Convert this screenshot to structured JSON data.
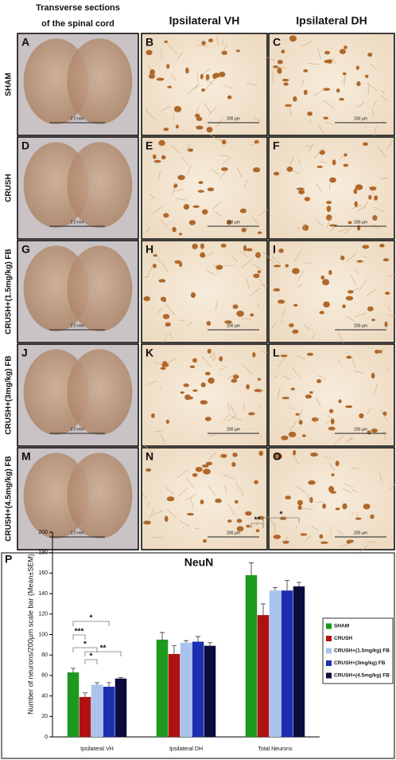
{
  "header": {
    "sections_title": [
      "Transverse sections",
      "of the spinal cord"
    ],
    "vh_title": "Ipsilateral VH",
    "dh_title": "Ipsilateral DH"
  },
  "rows": [
    {
      "label": "SHAM",
      "panels": [
        {
          "letter": "A",
          "scale": "2.0 mm"
        },
        {
          "letter": "B",
          "scale": "200 µm"
        },
        {
          "letter": "C",
          "scale": "200 µm"
        }
      ]
    },
    {
      "label": "CRUSH",
      "panels": [
        {
          "letter": "D",
          "scale": "2.0 mm"
        },
        {
          "letter": "E",
          "scale": "200 µm"
        },
        {
          "letter": "F",
          "scale": "200 µm"
        }
      ]
    },
    {
      "label": "CRUSH+(1.5mg/kg) FB",
      "panels": [
        {
          "letter": "G",
          "scale": "2.0 mm"
        },
        {
          "letter": "H",
          "scale": "200 µm"
        },
        {
          "letter": "I",
          "scale": "200 µm"
        }
      ]
    },
    {
      "label": "CRUSH+(3mg/kg) FB",
      "panels": [
        {
          "letter": "J",
          "scale": "2.0 mm"
        },
        {
          "letter": "K",
          "scale": "200 µm"
        },
        {
          "letter": "L",
          "scale": "200 µm"
        }
      ]
    },
    {
      "label": "CRUSH+(4.5mg/kg) FB",
      "panels": [
        {
          "letter": "M",
          "scale": "2.0 mm"
        },
        {
          "letter": "N",
          "scale": "200 µm"
        },
        {
          "letter": "O",
          "scale": "200 µm"
        }
      ]
    }
  ],
  "chart_data": {
    "type": "bar",
    "panel_letter": "P",
    "title": "NeuN",
    "y_label": "Number of neurons/200µm scale bar (Mean±SEM)",
    "categories": [
      "Ipsilateral VH",
      "Ipsilateral DH",
      "Total Neurons"
    ],
    "series": [
      {
        "name": "SHAM",
        "color": "#1d9a1d",
        "values": [
          63,
          95,
          158
        ],
        "errors": [
          4,
          7,
          12
        ]
      },
      {
        "name": "CRUSH",
        "color": "#b01212",
        "values": [
          39,
          81,
          119
        ],
        "errors": [
          4,
          8,
          11
        ]
      },
      {
        "name": "CRUSH+(1.5mg/kg) FB",
        "color": "#a8c4ec",
        "values": [
          51,
          92,
          143
        ],
        "errors": [
          2,
          2,
          3
        ]
      },
      {
        "name": "CRUSH+(3mg/kg) FB",
        "color": "#1c2fb0",
        "values": [
          49,
          93,
          143
        ],
        "errors": [
          4,
          5,
          10
        ]
      },
      {
        "name": "CRUSH+(4.5mg/kg) FB",
        "color": "#0b0b3c",
        "values": [
          57,
          89,
          147
        ],
        "errors": [
          1,
          3,
          4
        ]
      }
    ],
    "ylim": [
      0,
      200
    ],
    "yticks": [
      0,
      20,
      40,
      60,
      80,
      100,
      120,
      140,
      160,
      180,
      200
    ],
    "legend": "right",
    "significance": [
      "*",
      "***",
      "*",
      "*",
      "**",
      "**",
      "*"
    ]
  }
}
